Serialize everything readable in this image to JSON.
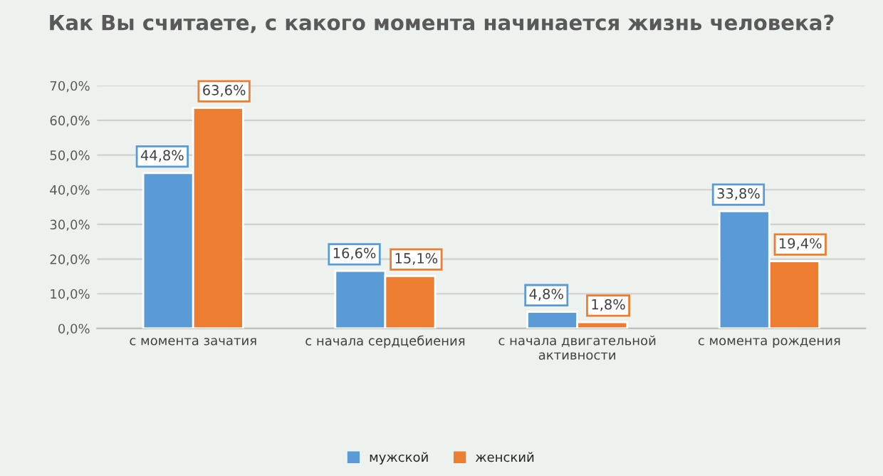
{
  "chart_data": {
    "type": "bar",
    "title": "Как Вы считаете, с какого момента начинается жизнь человека?",
    "categories": [
      "с момента зачатия",
      "с начала сердцебиения",
      "с начала двигательной активности",
      "с момента рождения"
    ],
    "series": [
      {
        "name": "мужской",
        "color": "#5b9bd5",
        "values": [
          44.8,
          16.6,
          4.8,
          33.8
        ],
        "value_labels": [
          "44,8%",
          "16,6%",
          "4,8%",
          "33,8%"
        ]
      },
      {
        "name": "женский",
        "color": "#ed7d31",
        "values": [
          63.6,
          15.1,
          1.8,
          19.4
        ],
        "value_labels": [
          "63,6%",
          "15,1%",
          "1,8%",
          "19,4%"
        ]
      }
    ],
    "ylim": [
      0,
      70
    ],
    "yticks": [
      {
        "value": 0,
        "label": "0,0%"
      },
      {
        "value": 10,
        "label": "10,0%"
      },
      {
        "value": 20,
        "label": "20,0%"
      },
      {
        "value": 30,
        "label": "30,0%"
      },
      {
        "value": 40,
        "label": "40,0%"
      },
      {
        "value": 50,
        "label": "50,0%"
      },
      {
        "value": 60,
        "label": "60,0%"
      },
      {
        "value": 70,
        "label": "70,0%"
      }
    ],
    "grid": "y",
    "legend": "bottom"
  }
}
